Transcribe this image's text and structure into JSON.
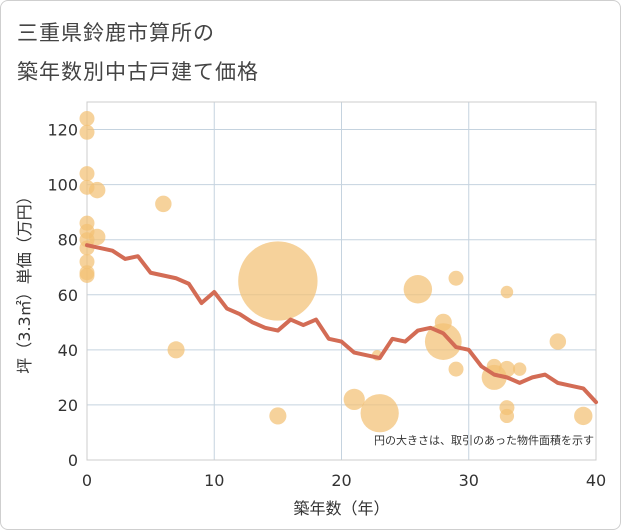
{
  "title_line1": "三重県鈴鹿市算所の",
  "title_line2": "築年数別中古戸建て価格",
  "chart_data": {
    "type": "scatter",
    "title": "三重県鈴鹿市算所の築年数別中古戸建て価格",
    "xlabel": "築年数（年）",
    "ylabel": "坪（3.3㎡）単価（万円）",
    "xlim": [
      0,
      40
    ],
    "ylim": [
      0,
      130
    ],
    "xticks": [
      0,
      10,
      20,
      30,
      40
    ],
    "yticks": [
      0,
      20,
      40,
      60,
      80,
      100,
      120
    ],
    "grid": true,
    "note": "円の大きさは、取引のあった物件面積を示す",
    "bubble_color": "#f2c074",
    "line_color": "#d36c55",
    "points": [
      {
        "x": 0,
        "y": 124,
        "size": 1
      },
      {
        "x": 0,
        "y": 119,
        "size": 1
      },
      {
        "x": 0,
        "y": 104,
        "size": 1
      },
      {
        "x": 0,
        "y": 99,
        "size": 1
      },
      {
        "x": 0,
        "y": 86,
        "size": 1
      },
      {
        "x": 0,
        "y": 83,
        "size": 1
      },
      {
        "x": 0,
        "y": 80,
        "size": 1
      },
      {
        "x": 0,
        "y": 77,
        "size": 1
      },
      {
        "x": 0,
        "y": 72,
        "size": 1
      },
      {
        "x": 0,
        "y": 68,
        "size": 1
      },
      {
        "x": 0,
        "y": 67,
        "size": 1
      },
      {
        "x": 0.8,
        "y": 98,
        "size": 1.2
      },
      {
        "x": 0.8,
        "y": 81,
        "size": 1.2
      },
      {
        "x": 6,
        "y": 93,
        "size": 1.2
      },
      {
        "x": 7,
        "y": 40,
        "size": 1.3
      },
      {
        "x": 15,
        "y": 65,
        "size": 28
      },
      {
        "x": 15,
        "y": 16,
        "size": 1.3
      },
      {
        "x": 21,
        "y": 22,
        "size": 2
      },
      {
        "x": 22.8,
        "y": 38,
        "size": 0.5
      },
      {
        "x": 23,
        "y": 17,
        "size": 6.5
      },
      {
        "x": 26,
        "y": 62,
        "size": 3.6
      },
      {
        "x": 28,
        "y": 50,
        "size": 1.3
      },
      {
        "x": 28,
        "y": 43,
        "size": 6
      },
      {
        "x": 29,
        "y": 66,
        "size": 1
      },
      {
        "x": 29,
        "y": 33,
        "size": 1
      },
      {
        "x": 32,
        "y": 34,
        "size": 1
      },
      {
        "x": 32,
        "y": 30,
        "size": 2.8
      },
      {
        "x": 33,
        "y": 61,
        "size": 0.7
      },
      {
        "x": 33,
        "y": 33,
        "size": 1.2
      },
      {
        "x": 33,
        "y": 19,
        "size": 1
      },
      {
        "x": 33,
        "y": 16,
        "size": 0.9
      },
      {
        "x": 34,
        "y": 33,
        "size": 0.8
      },
      {
        "x": 37,
        "y": 43,
        "size": 1.2
      },
      {
        "x": 39,
        "y": 16,
        "size": 1.5
      }
    ],
    "trend_line": {
      "x": [
        0,
        1,
        2,
        3,
        4,
        5,
        6,
        7,
        8,
        9,
        10,
        11,
        12,
        13,
        14,
        15,
        16,
        17,
        18,
        19,
        20,
        21,
        22,
        23,
        24,
        25,
        26,
        27,
        28,
        29,
        30,
        31,
        32,
        33,
        34,
        35,
        36,
        37,
        38,
        39,
        40
      ],
      "y": [
        78,
        77,
        76,
        73,
        74,
        68,
        67,
        66,
        64,
        57,
        61,
        55,
        53,
        50,
        48,
        47,
        51,
        49,
        51,
        44,
        43,
        39,
        38,
        37,
        44,
        43,
        47,
        48,
        46,
        41,
        40,
        34,
        31,
        30,
        28,
        30,
        31,
        28,
        27,
        26,
        21
      ]
    }
  }
}
